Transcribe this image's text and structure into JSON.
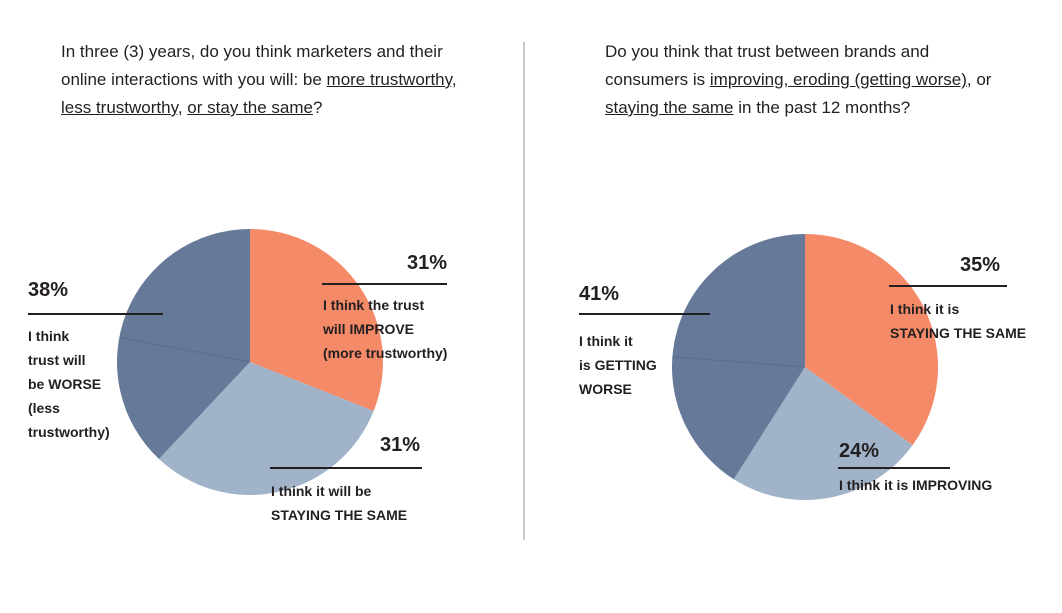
{
  "chart_data": [
    {
      "type": "pie",
      "title_parts": [
        {
          "text": "In three (3) years, do you think marketers and their online interactions with you will: be ",
          "u": false
        },
        {
          "text": "more trustworthy, less trustworthy,",
          "u": true
        },
        {
          "text": " ",
          "u": false
        },
        {
          "text": "or stay the same",
          "u": true
        },
        {
          "text": "?",
          "u": false
        }
      ],
      "slices": [
        {
          "label": "I think the trust\nwill IMPROVE\n(more trustworthy)",
          "value": 31,
          "value_label": "31%",
          "color": "#f58a68"
        },
        {
          "label": "I think it will be\nSTAYING THE SAME",
          "value": 31,
          "value_label": "31%",
          "color": "#a1b3c8"
        },
        {
          "label": "I think\ntrust will\nbe WORSE\n(less\ntrustworthy)",
          "value": 38,
          "value_label": "38%",
          "color": "#667998"
        }
      ]
    },
    {
      "type": "pie",
      "title_parts": [
        {
          "text": "Do you think that trust between brands and consumers is ",
          "u": false
        },
        {
          "text": "improving, eroding (getting worse)",
          "u": true
        },
        {
          "text": ", or ",
          "u": false
        },
        {
          "text": "staying the same",
          "u": true
        },
        {
          "text": " in the past 12 months?",
          "u": false
        }
      ],
      "slices": [
        {
          "label": "I think it is\nSTAYING THE SAME",
          "value": 35,
          "value_label": "35%",
          "color": "#f58a68"
        },
        {
          "label": "I think it is IMPROVING",
          "value": 24,
          "value_label": "24%",
          "color": "#a1b3c8"
        },
        {
          "label": "I think it\nis GETTING\nWORSE",
          "value": 41,
          "value_label": "41%",
          "color": "#667998"
        }
      ]
    }
  ]
}
